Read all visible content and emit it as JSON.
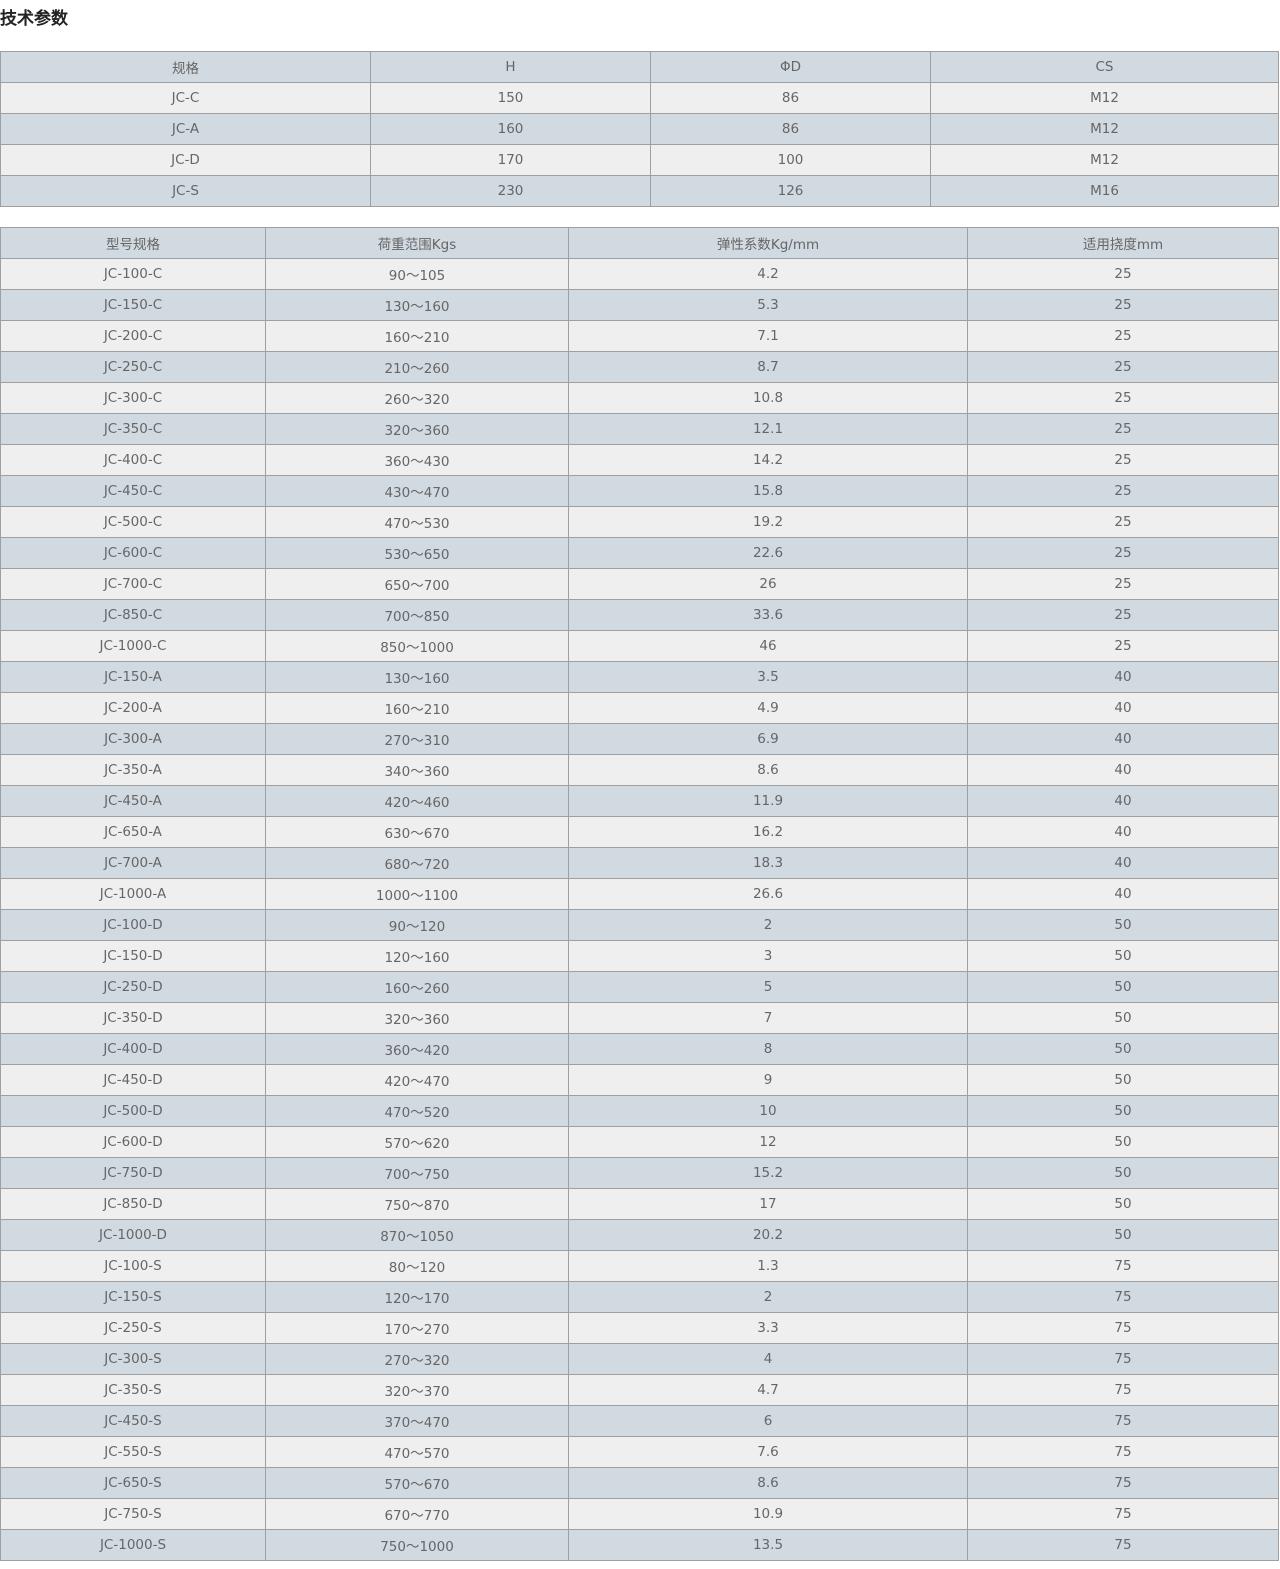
{
  "title": "技术参数",
  "colors": {
    "header_row": "#d1dae1",
    "light_row": "#efefef",
    "border": "#a0a0a0",
    "text": "#666666"
  },
  "table1": {
    "headers": [
      "规格",
      "H",
      "ΦD",
      "CS"
    ],
    "rows": [
      [
        "JC-C",
        "150",
        "86",
        "M12"
      ],
      [
        "JC-A",
        "160",
        "86",
        "M12"
      ],
      [
        "JC-D",
        "170",
        "100",
        "M12"
      ],
      [
        "JC-S",
        "230",
        "126",
        "M16"
      ]
    ]
  },
  "table2": {
    "headers": [
      "型号规格",
      "荷重范围Kgs",
      "弹性系数Kg/mm",
      "适用挠度mm"
    ],
    "rows": [
      [
        "JC-100-C",
        "90～105",
        "4.2",
        "25"
      ],
      [
        "JC-150-C",
        "130～160",
        "5.3",
        "25"
      ],
      [
        "JC-200-C",
        "160～210",
        "7.1",
        "25"
      ],
      [
        "JC-250-C",
        "210～260",
        "8.7",
        "25"
      ],
      [
        "JC-300-C",
        "260～320",
        "10.8",
        "25"
      ],
      [
        "JC-350-C",
        "320～360",
        "12.1",
        "25"
      ],
      [
        "JC-400-C",
        "360～430",
        "14.2",
        "25"
      ],
      [
        "JC-450-C",
        "430～470",
        "15.8",
        "25"
      ],
      [
        "JC-500-C",
        "470～530",
        "19.2",
        "25"
      ],
      [
        "JC-600-C",
        "530～650",
        "22.6",
        "25"
      ],
      [
        "JC-700-C",
        "650～700",
        "26",
        "25"
      ],
      [
        "JC-850-C",
        "700～850",
        "33.6",
        "25"
      ],
      [
        "JC-1000-C",
        "850～1000",
        "46",
        "25"
      ],
      [
        "JC-150-A",
        "130～160",
        "3.5",
        "40"
      ],
      [
        "JC-200-A",
        "160～210",
        "4.9",
        "40"
      ],
      [
        "JC-300-A",
        "270～310",
        "6.9",
        "40"
      ],
      [
        "JC-350-A",
        "340～360",
        "8.6",
        "40"
      ],
      [
        "JC-450-A",
        "420～460",
        "11.9",
        "40"
      ],
      [
        "JC-650-A",
        "630～670",
        "16.2",
        "40"
      ],
      [
        "JC-700-A",
        "680～720",
        "18.3",
        "40"
      ],
      [
        "JC-1000-A",
        "1000～1100",
        "26.6",
        "40"
      ],
      [
        "JC-100-D",
        "90～120",
        "2",
        "50"
      ],
      [
        "JC-150-D",
        "120～160",
        "3",
        "50"
      ],
      [
        "JC-250-D",
        "160～260",
        "5",
        "50"
      ],
      [
        "JC-350-D",
        "320～360",
        "7",
        "50"
      ],
      [
        "JC-400-D",
        "360～420",
        "8",
        "50"
      ],
      [
        "JC-450-D",
        "420～470",
        "9",
        "50"
      ],
      [
        "JC-500-D",
        "470～520",
        "10",
        "50"
      ],
      [
        "JC-600-D",
        "570～620",
        "12",
        "50"
      ],
      [
        "JC-750-D",
        "700～750",
        "15.2",
        "50"
      ],
      [
        "JC-850-D",
        "750～870",
        "17",
        "50"
      ],
      [
        "JC-1000-D",
        "870～1050",
        "20.2",
        "50"
      ],
      [
        "JC-100-S",
        "80～120",
        "1.3",
        "75"
      ],
      [
        "JC-150-S",
        "120～170",
        "2",
        "75"
      ],
      [
        "JC-250-S",
        "170～270",
        "3.3",
        "75"
      ],
      [
        "JC-300-S",
        "270～320",
        "4",
        "75"
      ],
      [
        "JC-350-S",
        "320～370",
        "4.7",
        "75"
      ],
      [
        "JC-450-S",
        "370～470",
        "6",
        "75"
      ],
      [
        "JC-550-S",
        "470～570",
        "7.6",
        "75"
      ],
      [
        "JC-650-S",
        "570～670",
        "8.6",
        "75"
      ],
      [
        "JC-750-S",
        "670～770",
        "10.9",
        "75"
      ],
      [
        "JC-1000-S",
        "750～1000",
        "13.5",
        "75"
      ]
    ]
  }
}
